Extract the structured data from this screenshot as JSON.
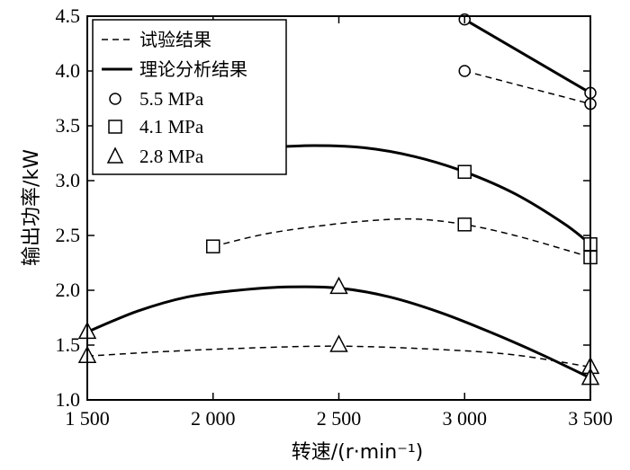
{
  "chart_data": {
    "type": "line",
    "xlabel": "转速/(r·min⁻¹)",
    "ylabel": "输出功率/kW",
    "xlim": [
      1500,
      3500
    ],
    "ylim": [
      1.0,
      4.5
    ],
    "x_ticks": [
      1500,
      2000,
      2500,
      3000,
      3500
    ],
    "x_tick_labels": [
      "1 500",
      "2 000",
      "2 500",
      "3 000",
      "3 500"
    ],
    "y_ticks": [
      1.0,
      1.5,
      2.0,
      2.5,
      3.0,
      3.5,
      4.0,
      4.5
    ],
    "y_tick_labels": [
      "1.0",
      "1.5",
      "2.0",
      "2.5",
      "3.0",
      "3.5",
      "4.0",
      "4.5"
    ],
    "grid": false,
    "legend_position": "top-left",
    "legend": {
      "experimental": "试验结果",
      "theoretical": "理论分析结果",
      "p55": "5.5 MPa",
      "p41": "4.1 MPa",
      "p28": "2.8 MPa"
    },
    "series": [
      {
        "pressure": "5.5 MPa",
        "kind": "experimental",
        "marker": "circle",
        "x": [
          3000,
          3500
        ],
        "y": [
          4.0,
          3.7
        ]
      },
      {
        "pressure": "5.5 MPa",
        "kind": "theoretical",
        "marker": "circle",
        "x": [
          3000,
          3500
        ],
        "y": [
          4.47,
          3.8
        ]
      },
      {
        "pressure": "4.1 MPa",
        "kind": "experimental",
        "marker": "square",
        "x": [
          2000,
          3000,
          3500
        ],
        "y": [
          2.4,
          2.6,
          2.3
        ]
      },
      {
        "pressure": "4.1 MPa",
        "kind": "theoretical",
        "marker": "square",
        "x": [
          3000,
          3500
        ],
        "y": [
          3.08,
          2.42
        ]
      },
      {
        "pressure": "2.8 MPa",
        "kind": "experimental",
        "marker": "triangle",
        "x": [
          1500,
          2500,
          3500
        ],
        "y": [
          1.4,
          1.5,
          1.3
        ]
      },
      {
        "pressure": "2.8 MPa",
        "kind": "theoretical",
        "marker": "triangle",
        "x": [
          1500,
          2500,
          3500
        ],
        "y": [
          1.62,
          2.03,
          1.2
        ]
      }
    ],
    "curves": {
      "t41": {
        "x": [
          2060,
          2200,
          2400,
          2600,
          2800,
          3000,
          3200,
          3400,
          3500
        ],
        "y": [
          3.27,
          3.3,
          3.32,
          3.3,
          3.22,
          3.08,
          2.88,
          2.6,
          2.42
        ]
      },
      "t28": {
        "x": [
          1500,
          1700,
          1900,
          2100,
          2300,
          2500,
          2700,
          2900,
          3100,
          3300,
          3500
        ],
        "y": [
          1.62,
          1.81,
          1.94,
          2.0,
          2.03,
          2.02,
          1.94,
          1.8,
          1.62,
          1.42,
          1.2
        ]
      },
      "e41": {
        "x": [
          2000,
          2200,
          2400,
          2600,
          2800,
          3000,
          3200,
          3400,
          3500
        ],
        "y": [
          2.4,
          2.51,
          2.58,
          2.63,
          2.65,
          2.6,
          2.5,
          2.37,
          2.3
        ]
      },
      "e28": {
        "x": [
          1500,
          1800,
          2100,
          2500,
          2900,
          3200,
          3500
        ],
        "y": [
          1.4,
          1.44,
          1.47,
          1.49,
          1.46,
          1.41,
          1.3
        ]
      }
    }
  }
}
